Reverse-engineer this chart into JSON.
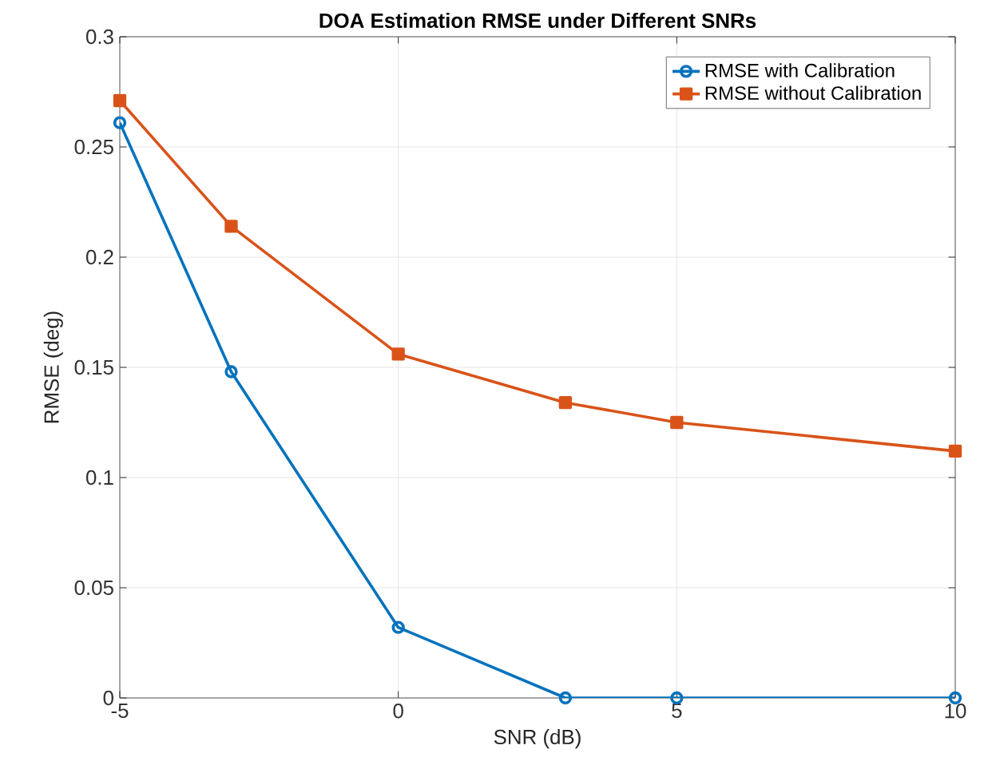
{
  "chart_data": {
    "type": "line",
    "title": "DOA Estimation RMSE under Different SNRs",
    "xlabel": "SNR (dB)",
    "ylabel": "RMSE (deg)",
    "x": [
      -5,
      -3,
      0,
      3,
      5,
      10
    ],
    "series": [
      {
        "name": "RMSE with Calibration",
        "color": "#0072bd",
        "marker": "circle",
        "values": [
          0.261,
          0.148,
          0.032,
          0,
          0,
          0
        ]
      },
      {
        "name": "RMSE without Calibration",
        "color": "#d95319",
        "marker": "square",
        "values": [
          0.271,
          0.214,
          0.156,
          0.134,
          0.125,
          0.112
        ]
      }
    ],
    "xlim": [
      -5,
      10
    ],
    "xticks": [
      -5,
      0,
      5,
      10
    ],
    "ylim": [
      0,
      0.3
    ],
    "yticks": [
      0,
      0.05,
      0.1,
      0.15,
      0.2,
      0.25,
      0.3
    ],
    "grid": true,
    "legend": "top right",
    "line_style": "solid"
  }
}
